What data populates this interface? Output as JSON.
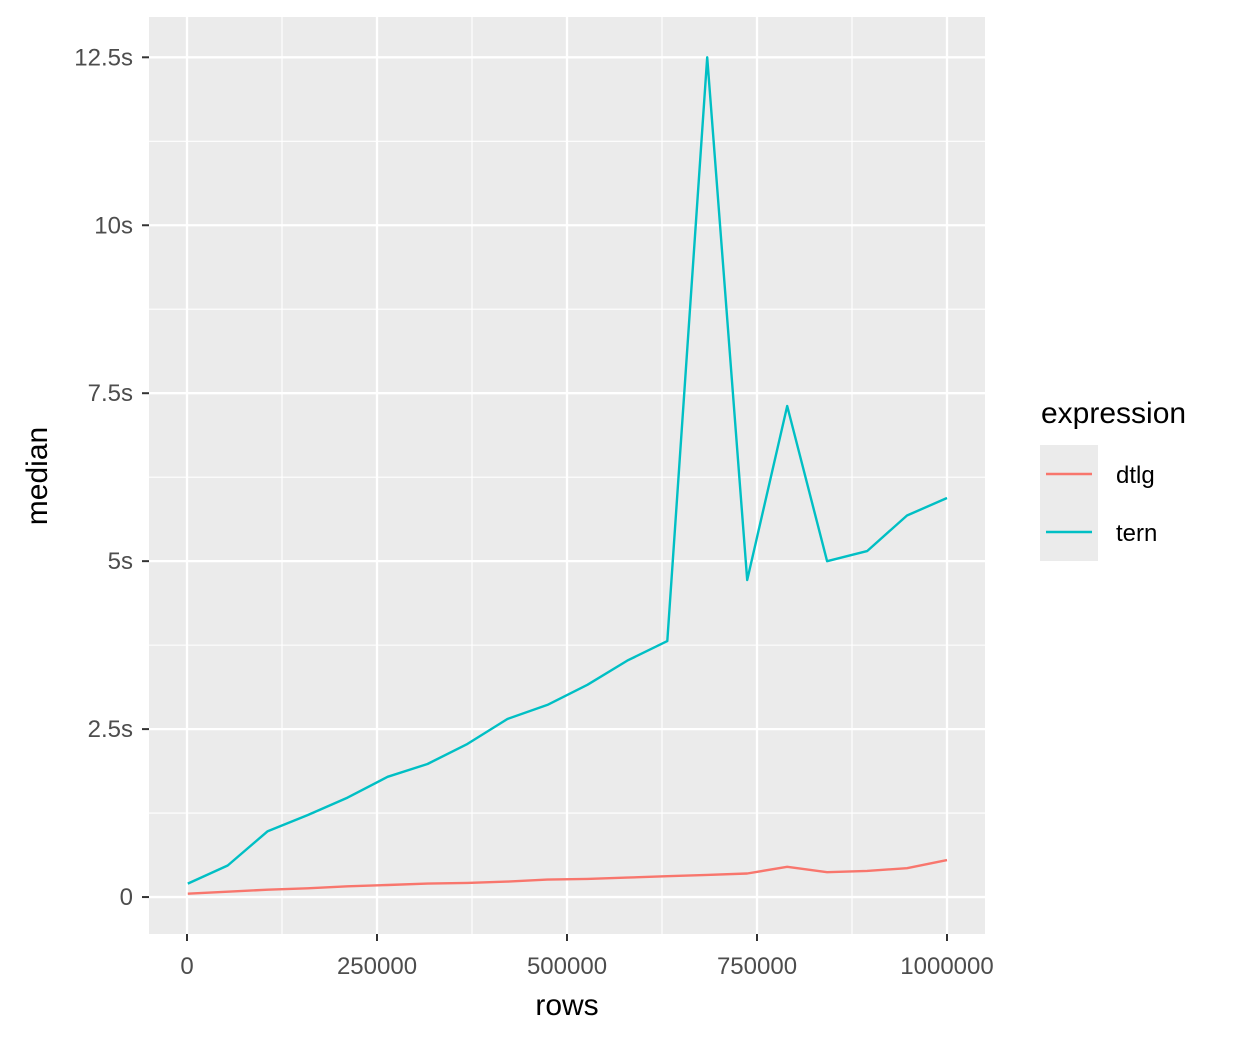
{
  "chart_data": {
    "type": "line",
    "title": "",
    "xlabel": "rows",
    "ylabel": "median",
    "xlim": [
      -50000,
      1050000
    ],
    "ylim": [
      -0.55,
      13.1
    ],
    "x_ticks": [
      0,
      250000,
      500000,
      750000,
      1000000
    ],
    "x_tick_labels": [
      "0",
      "250000",
      "500000",
      "750000",
      "1000000"
    ],
    "y_ticks": [
      0,
      2.5,
      5,
      7.5,
      10,
      12.5
    ],
    "y_tick_labels": [
      "0",
      "2.5s",
      "5s",
      "7.5s",
      "10s",
      "12.5s"
    ],
    "grid": true,
    "legend": {
      "title": "expression",
      "position": "right",
      "entries": [
        "dtlg",
        "tern"
      ]
    },
    "colors": {
      "dtlg": "#F8766D",
      "tern": "#00BFC4",
      "panel": "#EBEBEB",
      "grid": "#FFFFFF"
    },
    "x": [
      1000,
      53579,
      106158,
      158737,
      211316,
      263895,
      316474,
      369053,
      421632,
      474211,
      526789,
      579368,
      631947,
      684526,
      737105,
      789684,
      842263,
      894842,
      947421,
      1000000
    ],
    "series": [
      {
        "name": "dtlg",
        "values": [
          0.05,
          0.08,
          0.11,
          0.13,
          0.16,
          0.18,
          0.2,
          0.21,
          0.23,
          0.26,
          0.27,
          0.29,
          0.31,
          0.33,
          0.35,
          0.45,
          0.37,
          0.39,
          0.43,
          0.55
        ]
      },
      {
        "name": "tern",
        "values": [
          0.2,
          0.47,
          0.98,
          1.22,
          1.48,
          1.79,
          1.98,
          2.28,
          2.65,
          2.86,
          3.16,
          3.52,
          3.81,
          12.5,
          4.72,
          7.31,
          5.0,
          5.15,
          5.68,
          5.94
        ]
      }
    ]
  }
}
